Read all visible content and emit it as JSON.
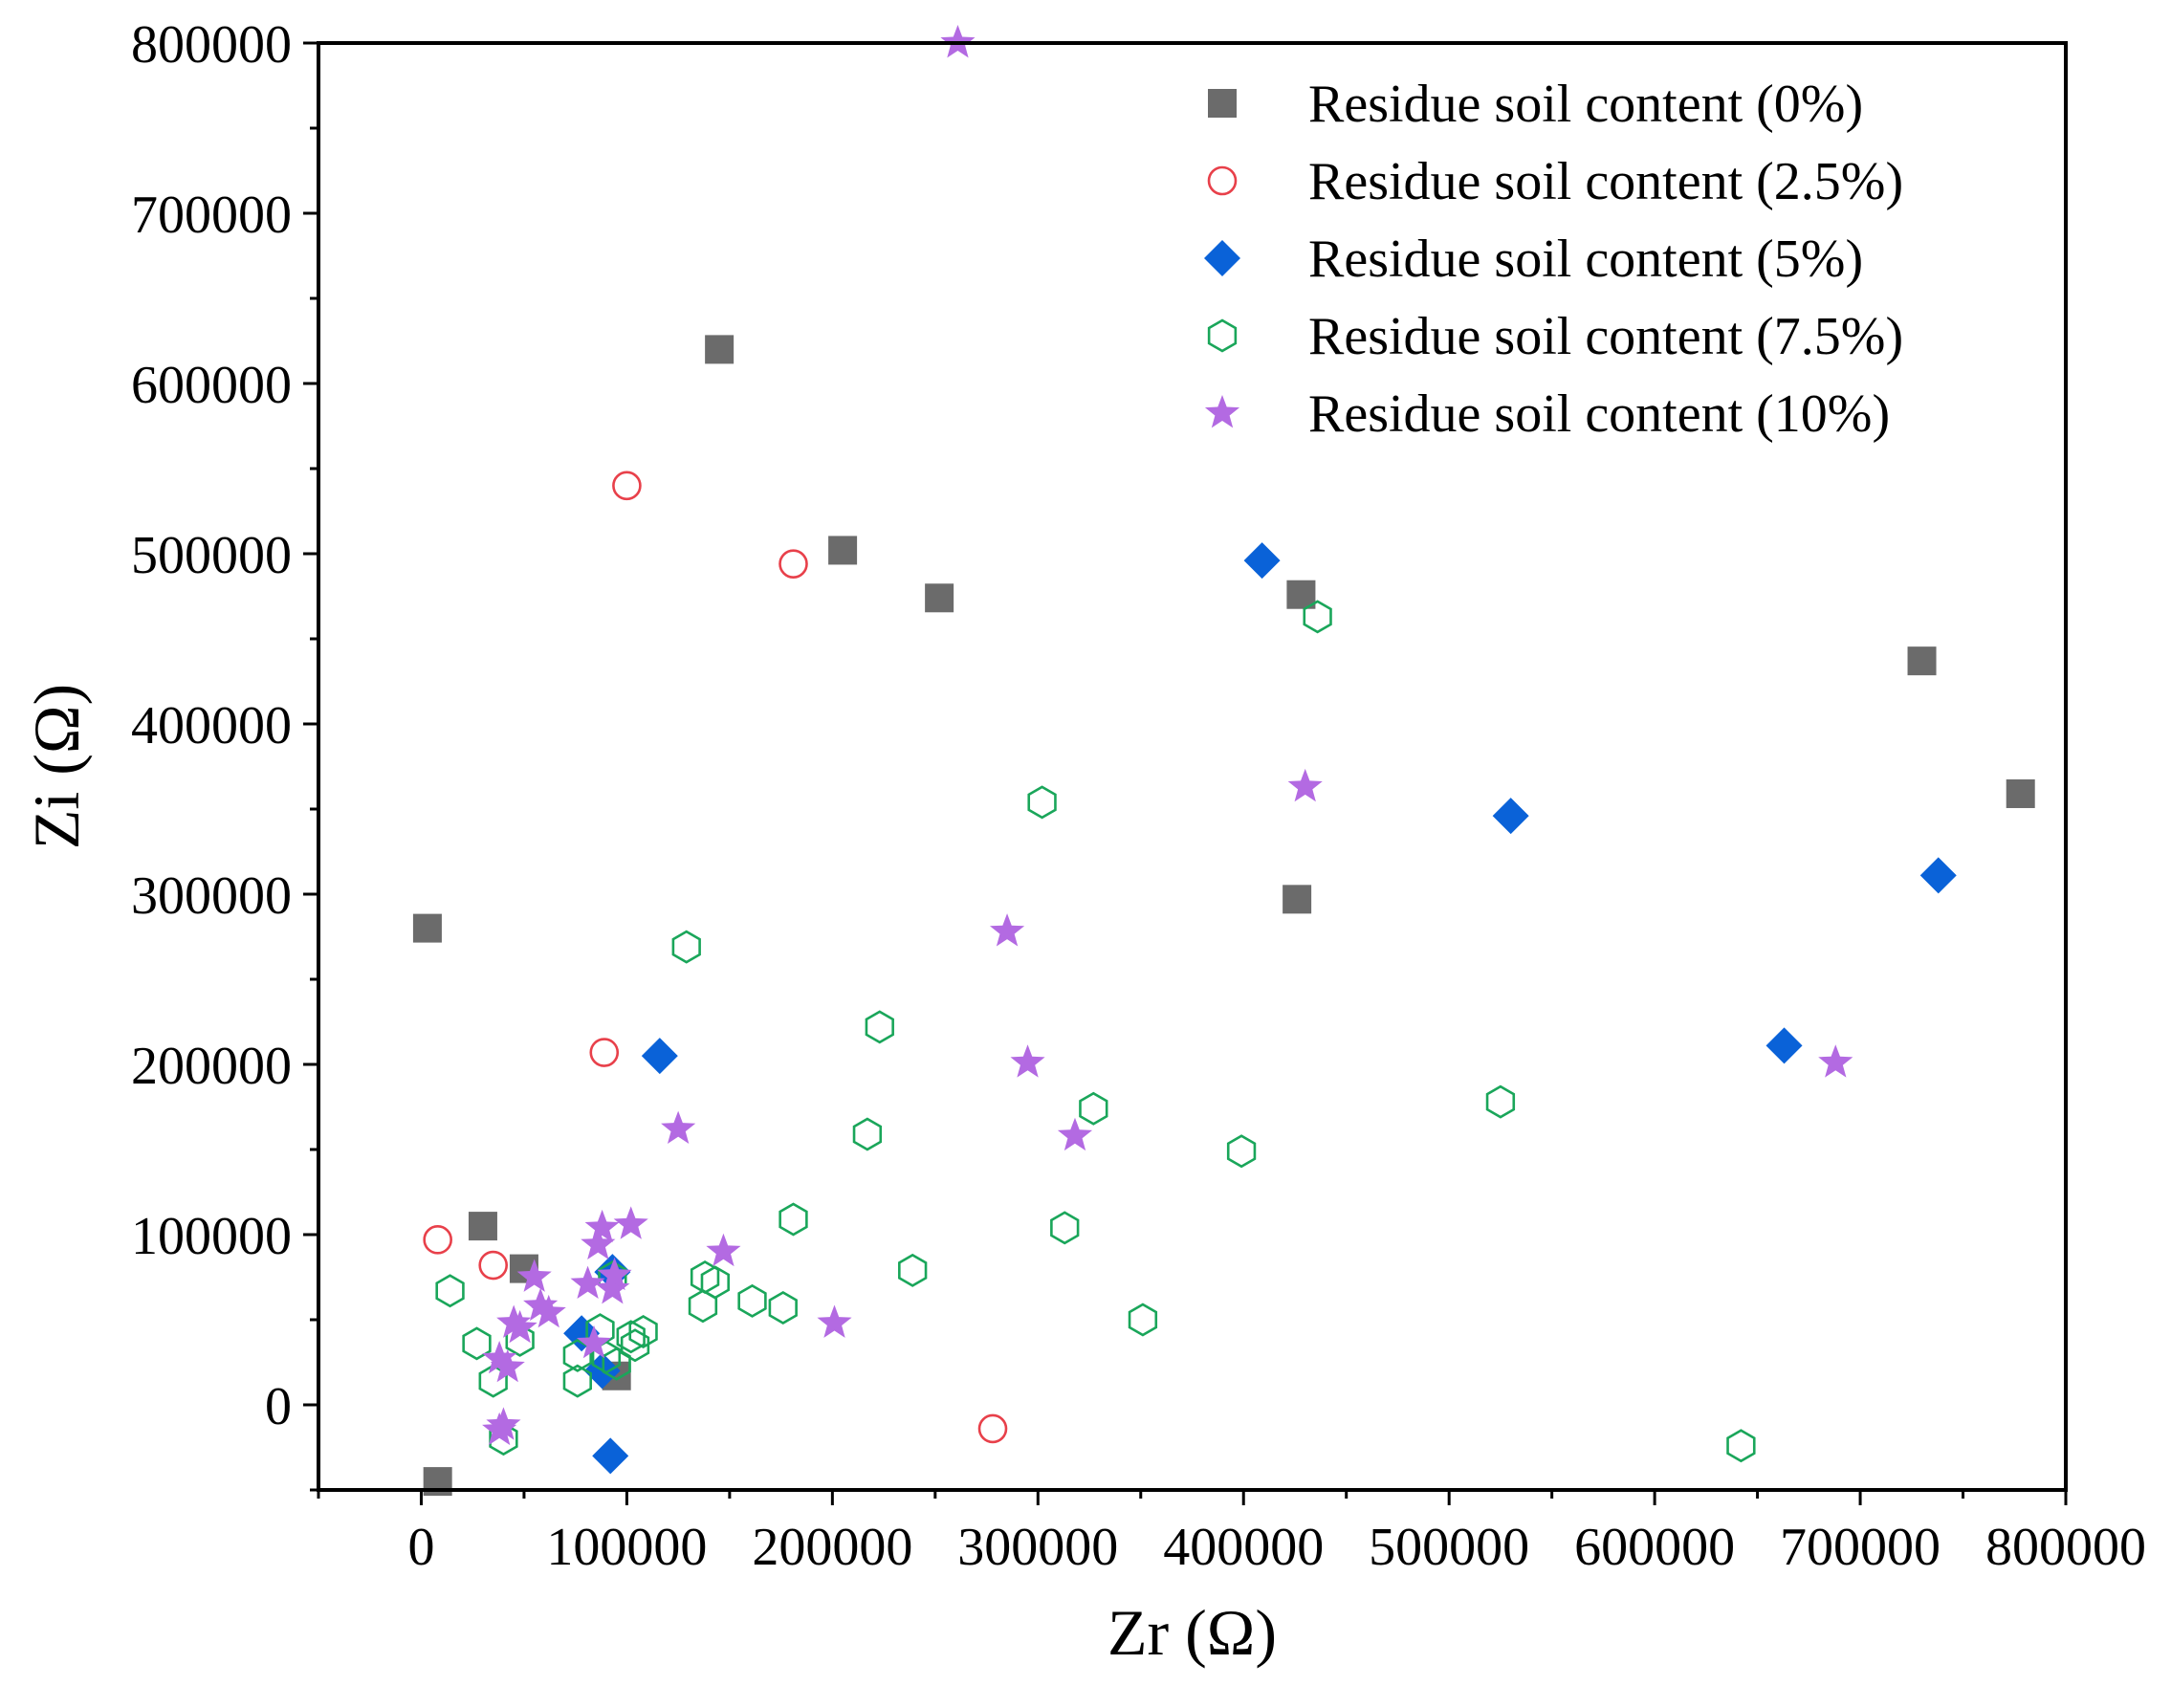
{
  "chart_data": {
    "type": "scatter",
    "title": "",
    "xlabel": "Zr (Ω)",
    "ylabel": "Zi (Ω)",
    "xlim": [
      -50000,
      800000
    ],
    "ylim": [
      -50000,
      800000
    ],
    "xticks": [
      0,
      100000,
      200000,
      300000,
      400000,
      500000,
      600000,
      700000,
      800000
    ],
    "yticks": [
      0,
      100000,
      200000,
      300000,
      400000,
      500000,
      600000,
      700000,
      800000
    ],
    "xtick_labels": [
      "0",
      "100000",
      "200000",
      "300000",
      "400000",
      "500000",
      "600000",
      "700000",
      "800000"
    ],
    "ytick_labels": [
      "0",
      "100000",
      "200000",
      "300000",
      "400000",
      "500000",
      "600000",
      "700000",
      "800000"
    ],
    "grid": false,
    "legend_position": "top-right",
    "series": [
      {
        "name": "Residue soil content (0%)",
        "marker": "square",
        "color": "#6b6b6b",
        "points": [
          [
            3000,
            280000
          ],
          [
            30000,
            105000
          ],
          [
            50000,
            80000
          ],
          [
            95000,
            17000
          ],
          [
            8000,
            -45000
          ],
          [
            145000,
            620000
          ],
          [
            205000,
            502000
          ],
          [
            252000,
            474000
          ],
          [
            428000,
            476000
          ],
          [
            426000,
            297000
          ],
          [
            730000,
            437000
          ],
          [
            778000,
            359000
          ]
        ]
      },
      {
        "name": "Residue soil content (2.5%)",
        "marker": "circle",
        "color": "#e8404a",
        "points": [
          [
            100000,
            540000
          ],
          [
            181000,
            494000
          ],
          [
            89000,
            207000
          ],
          [
            8000,
            97000
          ],
          [
            35000,
            82000
          ],
          [
            278000,
            -14000
          ]
        ]
      },
      {
        "name": "Residue soil content (5%)",
        "marker": "diamond",
        "color": "#0a62d8",
        "points": [
          [
            409000,
            496000
          ],
          [
            530000,
            346000
          ],
          [
            738000,
            311000
          ],
          [
            663000,
            211000
          ],
          [
            116000,
            205000
          ],
          [
            92000,
            -30000
          ],
          [
            78000,
            42000
          ],
          [
            88000,
            20000
          ],
          [
            93000,
            78000
          ]
        ]
      },
      {
        "name": "Residue soil content (7.5%)",
        "marker": "hexagon",
        "color": "#1aa65a",
        "points": [
          [
            436000,
            463000
          ],
          [
            302000,
            354000
          ],
          [
            129000,
            269000
          ],
          [
            223000,
            222000
          ],
          [
            217000,
            159000
          ],
          [
            327000,
            174000
          ],
          [
            399000,
            149000
          ],
          [
            525000,
            178000
          ],
          [
            181000,
            109000
          ],
          [
            313000,
            104000
          ],
          [
            239000,
            79000
          ],
          [
            351000,
            50000
          ],
          [
            642000,
            -24000
          ],
          [
            14000,
            67000
          ],
          [
            138000,
            75000
          ],
          [
            143000,
            72000
          ],
          [
            137000,
            58000
          ],
          [
            161000,
            61000
          ],
          [
            176000,
            57000
          ],
          [
            27000,
            36000
          ],
          [
            35000,
            14000
          ],
          [
            40000,
            -20000
          ],
          [
            48000,
            38000
          ],
          [
            76000,
            14000
          ],
          [
            76000,
            29000
          ],
          [
            87000,
            44000
          ],
          [
            90000,
            28000
          ],
          [
            95000,
            24000
          ],
          [
            104000,
            35000
          ],
          [
            102000,
            40000
          ],
          [
            108000,
            43000
          ],
          [
            93000,
            75000
          ]
        ]
      },
      {
        "name": "Residue soil content (10%)",
        "marker": "star",
        "color": "#b36ae2",
        "points": [
          [
            261000,
            800000
          ],
          [
            430000,
            363000
          ],
          [
            285000,
            278000
          ],
          [
            295000,
            201000
          ],
          [
            318000,
            158000
          ],
          [
            688000,
            201000
          ],
          [
            125000,
            162000
          ],
          [
            147000,
            90000
          ],
          [
            201000,
            48000
          ],
          [
            102000,
            106000
          ],
          [
            88000,
            104000
          ],
          [
            86000,
            94000
          ],
          [
            93000,
            68000
          ],
          [
            94000,
            76000
          ],
          [
            81000,
            71000
          ],
          [
            55000,
            75000
          ],
          [
            58000,
            58000
          ],
          [
            62000,
            54000
          ],
          [
            45000,
            48000
          ],
          [
            48000,
            45000
          ],
          [
            38000,
            27000
          ],
          [
            42000,
            22000
          ],
          [
            84000,
            36000
          ],
          [
            38000,
            -15000
          ],
          [
            40000,
            -12000
          ]
        ]
      }
    ]
  }
}
